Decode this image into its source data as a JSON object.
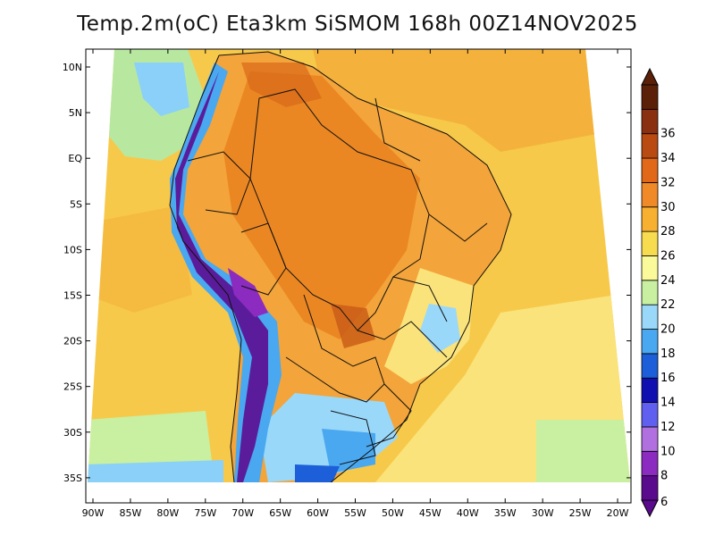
{
  "title": "Temp.2m(oC) Eta3km SiSMOM 168h 00Z14NOV2025",
  "lat_labels": [
    "10N",
    "5N",
    "EQ",
    "5S",
    "10S",
    "15S",
    "20S",
    "25S",
    "30S",
    "35S"
  ],
  "lon_labels": [
    "90W",
    "85W",
    "80W",
    "75W",
    "70W",
    "65W",
    "60W",
    "55W",
    "50W",
    "45W",
    "40W",
    "35W",
    "30W",
    "25W",
    "20W"
  ],
  "colorbar": {
    "labels": [
      "6",
      "8",
      "10",
      "12",
      "14",
      "16",
      "18",
      "20",
      "22",
      "24",
      "26",
      "28",
      "30",
      "32",
      "34",
      "36"
    ],
    "colors": [
      "#5a0a8c",
      "#8c2bbf",
      "#b070e0",
      "#6060f0",
      "#1010b0",
      "#1c5fd8",
      "#4aa8f0",
      "#9ad8fa",
      "#c8f0a0",
      "#fafa9a",
      "#f8dc50",
      "#f8b030",
      "#f08a28",
      "#e06818",
      "#b84a12",
      "#8a3010",
      "#5a2008"
    ]
  },
  "map": {
    "ocean_color": "#f7c94a",
    "land_color": "#f3a43a",
    "hot_color": "#e8801e",
    "cool_ocean_color": "#b8e8a0",
    "cold_ocean_color": "#8ad0f8",
    "andes_color": "#5a1c9a"
  }
}
